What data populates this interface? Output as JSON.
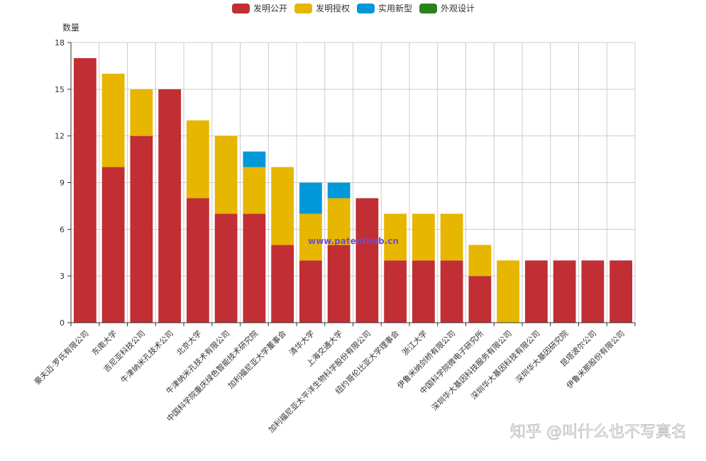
{
  "chart_data": {
    "type": "bar",
    "stacked": true,
    "ylabel": "数量",
    "ylim": [
      0,
      18
    ],
    "yticks": [
      0,
      3,
      6,
      9,
      12,
      15,
      18
    ],
    "grid": true,
    "legend_position": "top-center",
    "categories": [
      "豪夫迈·罗氏有限公司",
      "东南大学",
      "吉尼亚科技公司",
      "牛津纳米孔技术公司",
      "北京大学",
      "牛津纳米孔技术有限公司",
      "中国科学院重庆绿色智能技术研究院",
      "加利福尼亚大学董事会",
      "清华大学",
      "上海交通大学",
      "加利福尼亚太平洋生物科学股份有限公司",
      "纽约哥伦比亚大学理事会",
      "浙江大学",
      "伊鲁米纳剑桥有限公司",
      "中国科学院微电子研究所",
      "深圳华大基因科技服务有限公司",
      "深圳华大基因科技有限公司",
      "深圳华大基因研究院",
      "昆塔波尔公司",
      "伊鲁米那股份有限公司"
    ],
    "series": [
      {
        "name": "发明公开",
        "color": "#c12e34",
        "values": [
          17,
          10,
          12,
          15,
          8,
          7,
          7,
          5,
          4,
          5,
          8,
          4,
          4,
          4,
          3,
          0,
          4,
          4,
          4,
          4
        ]
      },
      {
        "name": "发明授权",
        "color": "#e6b600",
        "values": [
          0,
          6,
          3,
          0,
          5,
          5,
          3,
          5,
          3,
          3,
          0,
          3,
          3,
          3,
          2,
          4,
          0,
          0,
          0,
          0
        ]
      },
      {
        "name": "实用新型",
        "color": "#0098d9",
        "values": [
          0,
          0,
          0,
          0,
          0,
          0,
          1,
          0,
          2,
          1,
          0,
          0,
          0,
          0,
          0,
          0,
          0,
          0,
          0,
          0
        ]
      },
      {
        "name": "外观设计",
        "color": "#2b821d",
        "values": [
          0,
          0,
          0,
          0,
          0,
          0,
          0,
          0,
          0,
          0,
          0,
          0,
          0,
          0,
          0,
          0,
          0,
          0,
          0,
          0
        ]
      }
    ]
  },
  "watermarks": {
    "center": "www.patenthub.cn",
    "corner": "知乎 @叫什么也不写真名"
  }
}
